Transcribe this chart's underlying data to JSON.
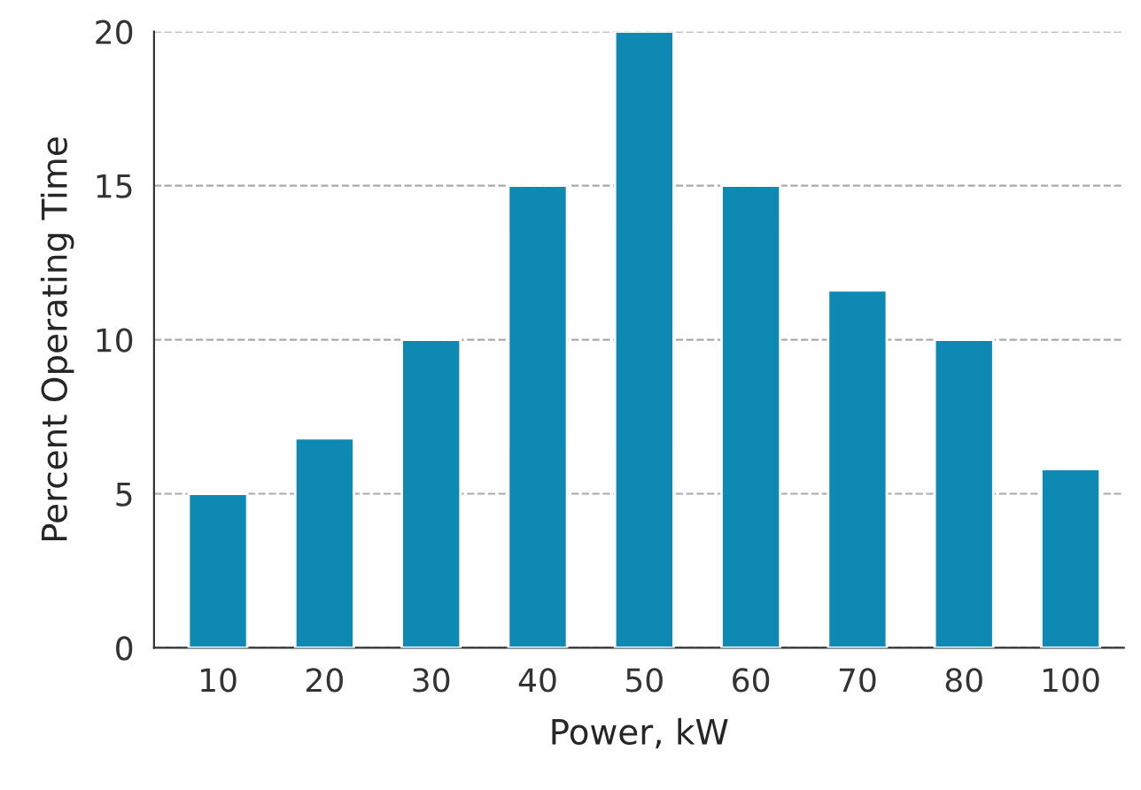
{
  "chart_data": {
    "type": "bar",
    "xlabel": "Power, kW",
    "ylabel": "Percent Operating Time",
    "categories": [
      "10",
      "20",
      "30",
      "40",
      "50",
      "60",
      "70",
      "80",
      "100"
    ],
    "values": [
      5,
      6.8,
      10,
      15,
      20,
      15,
      11.6,
      10,
      5.8
    ],
    "color": "#0e89b3",
    "ylim": [
      0,
      20
    ],
    "yticks": [
      0,
      5,
      10,
      15,
      20
    ],
    "grid": "y"
  }
}
